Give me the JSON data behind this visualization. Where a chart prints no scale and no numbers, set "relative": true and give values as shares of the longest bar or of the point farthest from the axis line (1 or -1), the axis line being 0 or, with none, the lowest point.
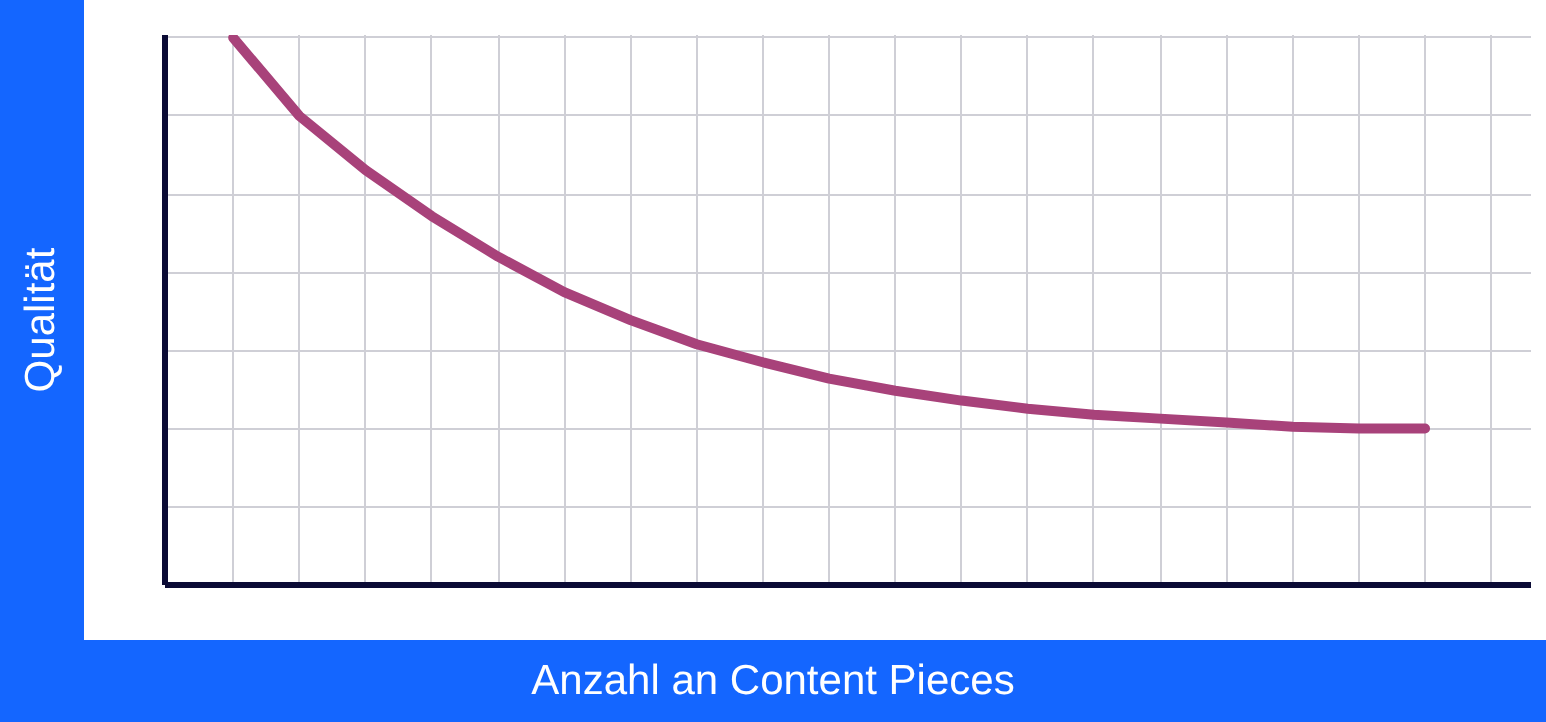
{
  "chart_data": {
    "type": "line",
    "xlabel": "Anzahl an Content Pieces",
    "ylabel": "Qualität",
    "relative": true,
    "grid": true,
    "line_style": "solid",
    "marker": "none",
    "categories": [
      null,
      null,
      null,
      null,
      null,
      null,
      null,
      null,
      null,
      null,
      null,
      null,
      null,
      null,
      null,
      null,
      null,
      null,
      null
    ],
    "series": [
      {
        "color": "#a8427a",
        "values": [
          1.0,
          0.857,
          0.758,
          0.674,
          0.6,
          0.535,
          0.484,
          0.44,
          0.407,
          0.377,
          0.355,
          0.337,
          0.322,
          0.311,
          0.304,
          0.297,
          0.289,
          0.286,
          0.286
        ]
      }
    ]
  }
}
